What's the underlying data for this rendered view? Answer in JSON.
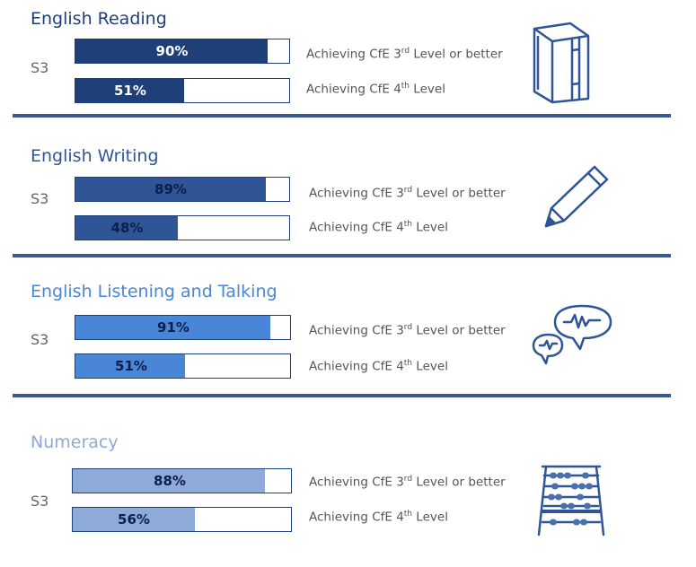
{
  "colors": {
    "reading": "#1f3f78",
    "writing": "#2f5597",
    "listening": "#4a86d8",
    "numeracy": "#8eaad8",
    "divider": "#3a5a8c"
  },
  "sections": [
    {
      "title": "English Reading",
      "title_color": "#1f3f78",
      "grade": "S3",
      "bar1": {
        "value": 90,
        "label": "90%",
        "desc_pre": "Achieving CfE 3",
        "desc_sup": "rd",
        "desc_post": " Level or better"
      },
      "bar2": {
        "value": 51,
        "label": "51%",
        "desc_pre": "Achieving CfE 4",
        "desc_sup": "th",
        "desc_post": " Level"
      },
      "icon": "book-icon"
    },
    {
      "title": "English Writing",
      "title_color": "#2f5597",
      "grade": "S3",
      "bar1": {
        "value": 89,
        "label": "89%",
        "desc_pre": "Achieving CfE 3",
        "desc_sup": "rd",
        "desc_post": " Level or better"
      },
      "bar2": {
        "value": 48,
        "label": "48%",
        "desc_pre": "Achieving CfE 4",
        "desc_sup": "th",
        "desc_post": " Level"
      },
      "icon": "pencil-icon"
    },
    {
      "title": "English Listening and Talking",
      "title_color": "#4a86d8",
      "grade": "S3",
      "bar1": {
        "value": 91,
        "label": "91%",
        "desc_pre": "Achieving CfE 3",
        "desc_sup": "rd",
        "desc_post": " Level or better"
      },
      "bar2": {
        "value": 51,
        "label": "51%",
        "desc_pre": "Achieving CfE 4",
        "desc_sup": "th",
        "desc_post": " Level"
      },
      "icon": "speech-bubbles-icon"
    },
    {
      "title": "Numeracy",
      "title_color": "#8eaad8",
      "grade": "S3",
      "bar1": {
        "value": 88,
        "label": "88%",
        "desc_pre": "Achieving CfE 3",
        "desc_sup": "rd",
        "desc_post": " Level or better"
      },
      "bar2": {
        "value": 56,
        "label": "56%",
        "desc_pre": "Achieving CfE 4",
        "desc_sup": "th",
        "desc_post": " Level"
      },
      "icon": "abacus-icon"
    }
  ]
}
